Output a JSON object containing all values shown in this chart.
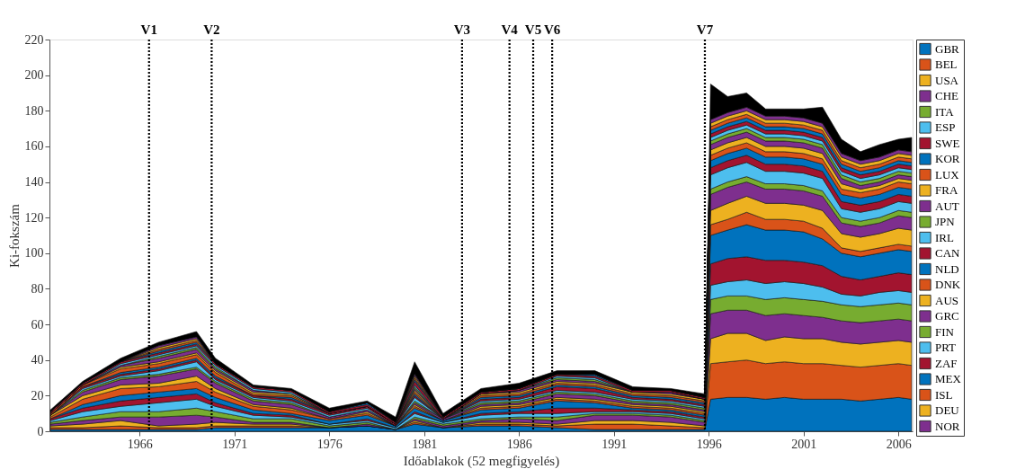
{
  "chart_data": {
    "type": "area",
    "stacked": true,
    "xlabel": "Időablakok (52 megfigyelés)",
    "ylabel": "Ki-fokszám",
    "x": [
      1961.3,
      1963,
      1965,
      1967,
      1969,
      1970,
      1972,
      1974,
      1976,
      1978,
      1979.5,
      1980.5,
      1982,
      1984,
      1986,
      1988,
      1990,
      1992,
      1994,
      1995.8,
      1996.1,
      1997,
      1998,
      1999,
      2000,
      2001,
      2002,
      2003,
      2004,
      2005,
      2006,
      2006.7
    ],
    "xlim": [
      1961.25,
      2006.75
    ],
    "xticks": [
      1966,
      1971,
      1976,
      1981,
      1986,
      1991,
      1996,
      2001,
      2006
    ],
    "ylim": [
      0,
      220
    ],
    "yticks": [
      0,
      20,
      40,
      60,
      80,
      100,
      120,
      140,
      160,
      180,
      200,
      220
    ],
    "grid": false,
    "legend": "right",
    "ref_lines": [
      {
        "axis": "x",
        "value": 1966.5,
        "label": "V1",
        "color": "#000000",
        "line_style": "dotted"
      },
      {
        "axis": "x",
        "value": 1969.8,
        "label": "V2",
        "color": "#000000",
        "line_style": "dotted"
      },
      {
        "axis": "x",
        "value": 1983.0,
        "label": "V3",
        "color": "#000000",
        "line_style": "dotted"
      },
      {
        "axis": "x",
        "value": 1985.5,
        "label": "V4",
        "color": "#000000",
        "line_style": "dotted"
      },
      {
        "axis": "x",
        "value": 1986.75,
        "label": "V5",
        "color": "#000000",
        "line_style": "dotted"
      },
      {
        "axis": "x",
        "value": 1987.75,
        "label": "V6",
        "color": "#000000",
        "line_style": "dotted"
      },
      {
        "axis": "x",
        "value": 1995.8,
        "label": "V7",
        "color": "#000000",
        "line_style": "dotted"
      }
    ],
    "series": [
      {
        "name": "GBR",
        "color": "#0072bd",
        "values": [
          1,
          1,
          1,
          1,
          1,
          2,
          2,
          2,
          2,
          3,
          1,
          4,
          2,
          3,
          3,
          2,
          1,
          1,
          1,
          1,
          18,
          19,
          19,
          18,
          19,
          18,
          18,
          18,
          17,
          18,
          19,
          18
        ]
      },
      {
        "name": "BEL",
        "color": "#d95319",
        "values": [
          1,
          1,
          2,
          1,
          1,
          1,
          1,
          1,
          0,
          0,
          0,
          1,
          0,
          1,
          1,
          1,
          3,
          3,
          2,
          1,
          20,
          20,
          21,
          20,
          20,
          20,
          20,
          19,
          19,
          19,
          19,
          19
        ]
      },
      {
        "name": "USA",
        "color": "#edb120",
        "values": [
          1,
          2,
          3,
          1,
          2,
          2,
          1,
          1,
          0,
          0,
          0,
          1,
          0,
          1,
          1,
          1,
          2,
          2,
          2,
          1,
          14,
          16,
          15,
          13,
          14,
          14,
          14,
          13,
          13,
          13,
          13,
          13
        ]
      },
      {
        "name": "CHE",
        "color": "#7e2f8e",
        "values": [
          1,
          2,
          2,
          5,
          5,
          3,
          1,
          1,
          0,
          1,
          0,
          1,
          1,
          1,
          2,
          2,
          3,
          3,
          3,
          2,
          14,
          13,
          13,
          14,
          13,
          13,
          12,
          12,
          12,
          12,
          12,
          12
        ]
      },
      {
        "name": "ITA",
        "color": "#77ac30",
        "values": [
          1,
          2,
          3,
          3,
          4,
          3,
          2,
          2,
          1,
          1,
          0,
          1,
          1,
          1,
          1,
          2,
          1,
          1,
          1,
          1,
          8,
          8,
          8,
          9,
          9,
          9,
          9,
          9,
          9,
          9,
          9,
          9
        ]
      },
      {
        "name": "ESP",
        "color": "#4dbeee",
        "values": [
          1,
          3,
          3,
          5,
          5,
          3,
          2,
          1,
          1,
          1,
          1,
          2,
          1,
          2,
          2,
          2,
          1,
          1,
          1,
          1,
          8,
          8,
          9,
          9,
          9,
          9,
          8,
          6,
          6,
          7,
          7,
          7
        ]
      },
      {
        "name": "SWE",
        "color": "#a2142f",
        "values": [
          1,
          2,
          3,
          3,
          3,
          2,
          1,
          1,
          0,
          1,
          0,
          1,
          0,
          1,
          1,
          3,
          2,
          1,
          1,
          1,
          12,
          13,
          13,
          13,
          12,
          12,
          12,
          10,
          9,
          9,
          10,
          10
        ]
      },
      {
        "name": "KOR",
        "color": "#0072bd",
        "values": [
          0,
          2,
          3,
          3,
          3,
          3,
          2,
          1,
          2,
          2,
          1,
          2,
          1,
          2,
          2,
          4,
          3,
          1,
          1,
          1,
          16,
          16,
          18,
          17,
          17,
          17,
          15,
          13,
          13,
          13,
          13,
          13
        ]
      },
      {
        "name": "LUX",
        "color": "#d95319",
        "values": [
          1,
          3,
          4,
          3,
          4,
          3,
          2,
          2,
          1,
          1,
          0,
          1,
          0,
          1,
          1,
          1,
          1,
          1,
          1,
          1,
          6,
          6,
          7,
          6,
          6,
          6,
          6,
          3,
          3,
          3,
          3,
          3
        ]
      },
      {
        "name": "FRA",
        "color": "#edb120",
        "values": [
          1,
          2,
          2,
          2,
          3,
          2,
          1,
          1,
          0,
          1,
          0,
          1,
          0,
          1,
          1,
          1,
          1,
          1,
          1,
          1,
          8,
          9,
          9,
          9,
          9,
          9,
          10,
          8,
          8,
          8,
          9,
          9
        ]
      },
      {
        "name": "AUT",
        "color": "#7e2f8e",
        "values": [
          0,
          2,
          3,
          4,
          4,
          3,
          2,
          2,
          1,
          1,
          0,
          1,
          1,
          1,
          1,
          2,
          2,
          1,
          1,
          1,
          9,
          9,
          8,
          8,
          8,
          8,
          8,
          6,
          6,
          6,
          7,
          7
        ]
      },
      {
        "name": "JPN",
        "color": "#77ac30",
        "values": [
          0,
          1,
          1,
          1,
          1,
          1,
          1,
          1,
          0,
          0,
          0,
          1,
          0,
          1,
          1,
          1,
          1,
          1,
          1,
          1,
          3,
          3,
          3,
          3,
          3,
          3,
          3,
          3,
          3,
          3,
          3,
          3
        ]
      },
      {
        "name": "IRL",
        "color": "#4dbeee",
        "values": [
          0,
          1,
          1,
          2,
          3,
          1,
          1,
          1,
          1,
          1,
          0,
          2,
          0,
          1,
          1,
          1,
          1,
          1,
          1,
          1,
          8,
          8,
          8,
          7,
          7,
          7,
          7,
          5,
          5,
          5,
          5,
          5
        ]
      },
      {
        "name": "CAN",
        "color": "#a2142f",
        "values": [
          0,
          1,
          1,
          1,
          1,
          1,
          1,
          1,
          1,
          1,
          1,
          1,
          0,
          1,
          1,
          2,
          2,
          1,
          1,
          1,
          4,
          4,
          4,
          4,
          4,
          4,
          4,
          4,
          4,
          4,
          4,
          4
        ]
      },
      {
        "name": "NLD",
        "color": "#0072bd",
        "values": [
          0,
          0,
          1,
          1,
          1,
          1,
          0,
          1,
          0,
          0,
          0,
          1,
          0,
          1,
          1,
          1,
          1,
          1,
          1,
          1,
          4,
          4,
          4,
          4,
          4,
          4,
          4,
          4,
          4,
          4,
          4,
          4
        ]
      },
      {
        "name": "DNK",
        "color": "#d95319",
        "values": [
          1,
          1,
          2,
          2,
          2,
          2,
          1,
          1,
          0,
          0,
          0,
          1,
          0,
          1,
          1,
          1,
          1,
          1,
          1,
          1,
          3,
          3,
          3,
          3,
          3,
          3,
          3,
          3,
          3,
          3,
          3,
          3
        ]
      },
      {
        "name": "AUS",
        "color": "#edb120",
        "values": [
          0,
          0,
          1,
          1,
          1,
          1,
          1,
          1,
          0,
          0,
          0,
          1,
          0,
          1,
          1,
          1,
          1,
          1,
          1,
          1,
          3,
          3,
          3,
          3,
          3,
          3,
          3,
          3,
          2,
          2,
          2,
          2
        ]
      },
      {
        "name": "GRC",
        "color": "#7e2f8e",
        "values": [
          0,
          0,
          1,
          2,
          2,
          1,
          1,
          0,
          0,
          0,
          0,
          1,
          0,
          0,
          1,
          1,
          1,
          0,
          1,
          0,
          3,
          3,
          3,
          3,
          3,
          3,
          3,
          3,
          2,
          2,
          2,
          2
        ]
      },
      {
        "name": "FIN",
        "color": "#77ac30",
        "values": [
          0,
          0,
          0,
          1,
          1,
          1,
          0,
          0,
          0,
          0,
          0,
          1,
          0,
          0,
          0,
          1,
          1,
          0,
          0,
          0,
          2,
          2,
          2,
          2,
          2,
          2,
          2,
          2,
          2,
          2,
          2,
          2
        ]
      },
      {
        "name": "PRT",
        "color": "#4dbeee",
        "values": [
          0,
          0,
          1,
          1,
          1,
          1,
          1,
          1,
          0,
          0,
          0,
          1,
          0,
          0,
          0,
          1,
          1,
          0,
          0,
          0,
          2,
          2,
          2,
          2,
          2,
          2,
          2,
          2,
          2,
          2,
          2,
          2
        ]
      },
      {
        "name": "ZAF",
        "color": "#a2142f",
        "values": [
          1,
          1,
          1,
          1,
          1,
          1,
          1,
          1,
          1,
          1,
          1,
          2,
          1,
          1,
          1,
          1,
          1,
          1,
          1,
          1,
          2,
          2,
          2,
          2,
          2,
          2,
          2,
          2,
          2,
          2,
          2,
          2
        ]
      },
      {
        "name": "MEX",
        "color": "#0072bd",
        "values": [
          0,
          0,
          0,
          1,
          1,
          0,
          0,
          0,
          0,
          1,
          0,
          1,
          0,
          0,
          0,
          0,
          1,
          0,
          0,
          0,
          2,
          2,
          2,
          2,
          2,
          2,
          2,
          2,
          2,
          2,
          2,
          2
        ]
      },
      {
        "name": "ISL",
        "color": "#d95319",
        "values": [
          0,
          0,
          0,
          1,
          1,
          0,
          0,
          0,
          0,
          0,
          0,
          1,
          0,
          0,
          0,
          0,
          0,
          0,
          0,
          0,
          2,
          2,
          2,
          2,
          2,
          2,
          2,
          2,
          2,
          2,
          2,
          2
        ]
      },
      {
        "name": "DEU",
        "color": "#edb120",
        "values": [
          0,
          0,
          0,
          1,
          1,
          0,
          0,
          0,
          0,
          0,
          0,
          1,
          0,
          0,
          0,
          0,
          0,
          0,
          0,
          0,
          2,
          2,
          2,
          2,
          2,
          2,
          2,
          2,
          2,
          2,
          2,
          2
        ]
      },
      {
        "name": "NOR",
        "color": "#7e2f8e",
        "values": [
          0,
          0,
          0,
          1,
          1,
          0,
          0,
          0,
          0,
          0,
          0,
          1,
          0,
          0,
          0,
          0,
          0,
          0,
          0,
          0,
          2,
          2,
          2,
          2,
          2,
          2,
          2,
          2,
          2,
          2,
          2,
          2
        ]
      },
      {
        "color": "#000000",
        "values": [
          1,
          1,
          2,
          2,
          3,
          3,
          1,
          1,
          2,
          1,
          3,
          7,
          2,
          2,
          3,
          2,
          2,
          2,
          1,
          2,
          20,
          9,
          8,
          4,
          4,
          5,
          9,
          8,
          5,
          7,
          6,
          8
        ]
      }
    ]
  }
}
